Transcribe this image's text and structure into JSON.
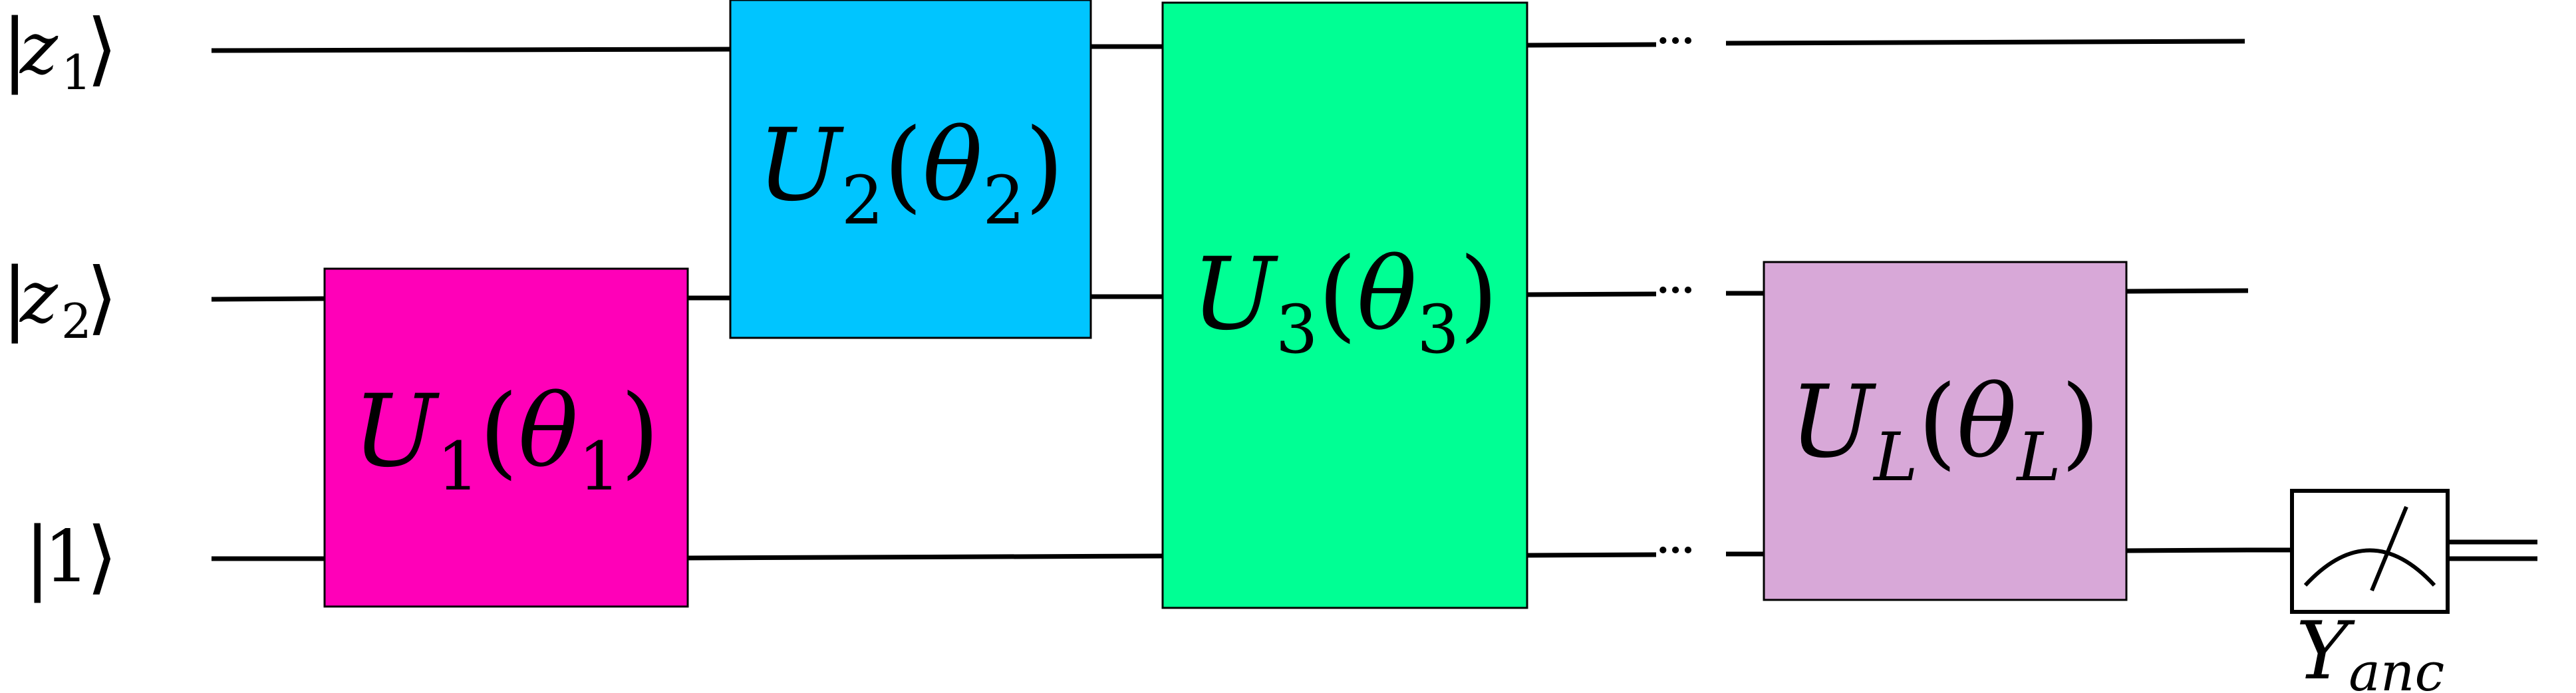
{
  "qubits": [
    {
      "ket_open": "|",
      "symbol": "z",
      "sub": "1",
      "ket_close": "⟩"
    },
    {
      "ket_open": "|",
      "symbol": "z",
      "sub": "2",
      "ket_close": "⟩"
    },
    {
      "ket_open": "|",
      "symbol": "1",
      "sub": "",
      "ket_close": "⟩"
    }
  ],
  "gates": [
    {
      "op": "U",
      "op_sub": "1",
      "lp": "(",
      "param": "θ",
      "param_sub": "1",
      "rp": ")",
      "color": "#ff00b8"
    },
    {
      "op": "U",
      "op_sub": "2",
      "lp": "(",
      "param": "θ",
      "param_sub": "2",
      "rp": ")",
      "color": "#00c5ff"
    },
    {
      "op": "U",
      "op_sub": "3",
      "lp": "(",
      "param": "θ",
      "param_sub": "3",
      "rp": ")",
      "color": "#00ff94"
    },
    {
      "op": "U",
      "op_sub": "L",
      "lp": "(",
      "param": "θ",
      "param_sub": "L",
      "rp": ")",
      "color": "#d8a8d8"
    }
  ],
  "ellipsis": "···",
  "measurement": {
    "symbol": "Y",
    "sub": "anc"
  }
}
